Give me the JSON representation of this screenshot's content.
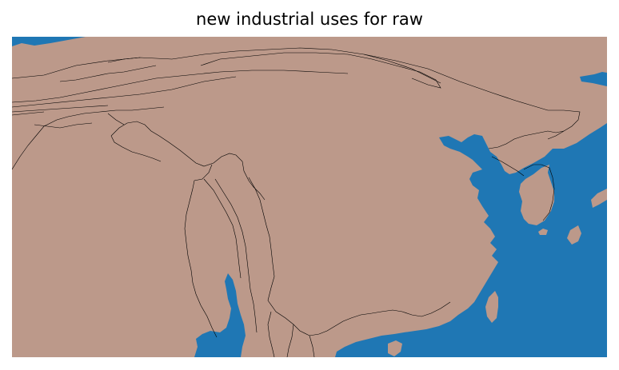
{
  "title": "new industrial uses for raw",
  "colors": {
    "land": "#bc998a",
    "sea": "#1f77b4",
    "border": "#000000",
    "background": "#ffffff"
  },
  "legend": null
}
